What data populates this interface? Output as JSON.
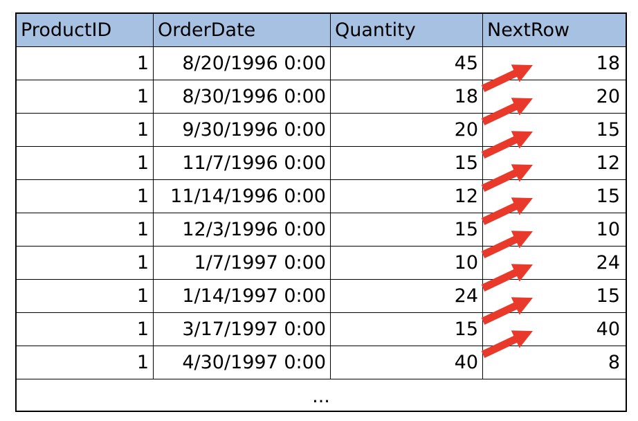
{
  "table": {
    "headers": [
      "ProductID",
      "OrderDate",
      "Quantity",
      "NextRow"
    ],
    "rows": [
      [
        "1",
        "8/20/1996 0:00",
        "45",
        "18"
      ],
      [
        "1",
        "8/30/1996 0:00",
        "18",
        "20"
      ],
      [
        "1",
        "9/30/1996 0:00",
        "20",
        "15"
      ],
      [
        "1",
        "11/7/1996 0:00",
        "15",
        "12"
      ],
      [
        "1",
        "11/14/1996 0:00",
        "12",
        "15"
      ],
      [
        "1",
        "12/3/1996 0:00",
        "15",
        "10"
      ],
      [
        "1",
        "1/7/1997 0:00",
        "10",
        "24"
      ],
      [
        "1",
        "1/14/1997 0:00",
        "24",
        "15"
      ],
      [
        "1",
        "3/17/1997 0:00",
        "15",
        "40"
      ],
      [
        "1",
        "4/30/1997 0:00",
        "40",
        "8"
      ]
    ],
    "ellipsis": "..."
  },
  "colors": {
    "header_bg": "#a7c1e3",
    "arrow": "#e8392b",
    "grid_line": "#000000"
  },
  "arrow_icon_name": "red-diagonal-arrow"
}
